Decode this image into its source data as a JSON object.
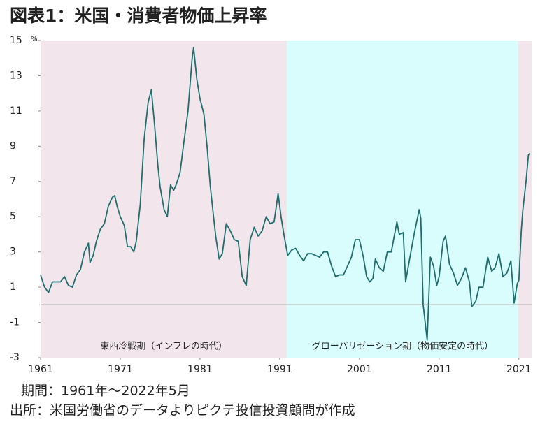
{
  "title": "図表1：米国・消費者物価上昇率",
  "notes": [
    "期間：1961年～2022年5月",
    "出所：米国労働省のデータよりピクテ投信投資顧問が作成"
  ],
  "chart_data": {
    "type": "line",
    "y_unit": "%",
    "color": "#1f6e6e",
    "zero_line": true,
    "negative_tick_color": "#e00000",
    "xlim": [
      1961,
      2022.6
    ],
    "xticks": [
      1961,
      1971,
      1981,
      1991,
      2001,
      2011,
      2021
    ],
    "ylim": [
      -3,
      15
    ],
    "yticks": [
      -3,
      -1,
      1,
      3,
      5,
      7,
      9,
      11,
      13,
      15
    ],
    "regions": [
      {
        "start": 1961,
        "end": 1991.9,
        "color": "#f2e6ec",
        "label": "東西冷戦期（インフレの時代）"
      },
      {
        "start": 1991.9,
        "end": 2020.9,
        "color": "#d9fcfc",
        "label": "グローバリゼーション期（物価安定の時代）"
      },
      {
        "start": 2020.9,
        "end": 2022.6,
        "color": "#f2e6ec"
      }
    ],
    "x": [
      1961.0,
      1961.5,
      1962,
      1962.5,
      1963,
      1963.5,
      1964,
      1964.5,
      1965,
      1965.5,
      1966,
      1966.5,
      1967,
      1967.2,
      1967.6,
      1968,
      1968.5,
      1969,
      1969.5,
      1970,
      1970.3,
      1970.6,
      1971,
      1971.5,
      1971.9,
      1972.3,
      1972.7,
      1973,
      1973.5,
      1974,
      1974.5,
      1974.9,
      1975.3,
      1975.7,
      1976,
      1976.5,
      1976.9,
      1977.3,
      1977.7,
      1978,
      1978.5,
      1979,
      1979.5,
      1980,
      1980.2,
      1980.6,
      1981,
      1981.5,
      1981.9,
      1982.3,
      1982.7,
      1983,
      1983.4,
      1983.8,
      1984.3,
      1984.8,
      1985.3,
      1985.8,
      1986.3,
      1986.8,
      1987.3,
      1987.8,
      1988.3,
      1988.8,
      1989.3,
      1989.8,
      1990.3,
      1990.8,
      1991.2,
      1991.6,
      1992,
      1992.5,
      1993,
      1993.5,
      1994,
      1994.5,
      1995,
      1995.5,
      1996,
      1996.5,
      1997,
      1997.5,
      1998,
      1998.5,
      1999,
      1999.5,
      2000,
      2000.5,
      2001,
      2001.5,
      2001.9,
      2002.3,
      2002.7,
      2003,
      2003.5,
      2004,
      2004.5,
      2005,
      2005.7,
      2006,
      2006.5,
      2006.8,
      2007.3,
      2007.9,
      2008.5,
      2008.7,
      2009,
      2009.5,
      2009.9,
      2010.3,
      2010.7,
      2011,
      2011.5,
      2011.8,
      2012.3,
      2012.8,
      2013.3,
      2013.8,
      2014.3,
      2014.8,
      2015.1,
      2015.6,
      2016,
      2016.5,
      2017.1,
      2017.6,
      2018,
      2018.5,
      2019,
      2019.5,
      2020,
      2020.4,
      2020.8,
      2021,
      2021.3,
      2021.5,
      2021.9,
      2022.2,
      2022.4
    ],
    "values": [
      1.7,
      1.0,
      0.7,
      1.3,
      1.3,
      1.3,
      1.6,
      1.1,
      1.0,
      1.7,
      2.0,
      3.0,
      3.5,
      2.4,
      2.8,
      3.6,
      4.3,
      4.6,
      5.6,
      6.1,
      6.2,
      5.6,
      5.0,
      4.5,
      3.3,
      3.3,
      3.0,
      3.6,
      5.7,
      9.4,
      11.5,
      12.2,
      10.2,
      8.0,
      6.7,
      5.4,
      5.0,
      6.8,
      6.5,
      6.8,
      7.5,
      9.3,
      11.0,
      13.9,
      14.6,
      12.8,
      11.7,
      10.8,
      8.9,
      6.7,
      5.0,
      3.8,
      2.6,
      2.9,
      4.6,
      4.2,
      3.7,
      3.6,
      1.6,
      1.1,
      3.7,
      4.4,
      3.9,
      4.2,
      5.0,
      4.6,
      4.7,
      6.3,
      4.9,
      3.8,
      2.8,
      3.1,
      3.2,
      2.8,
      2.5,
      2.9,
      2.9,
      2.8,
      2.7,
      3.0,
      3.0,
      2.2,
      1.6,
      1.7,
      1.7,
      2.2,
      2.7,
      3.7,
      3.7,
      2.7,
      1.6,
      1.3,
      1.5,
      2.6,
      2.1,
      1.9,
      3.0,
      3.0,
      4.7,
      4.0,
      4.1,
      1.3,
      2.6,
      4.1,
      5.4,
      4.9,
      0.0,
      -2.0,
      2.7,
      2.2,
      1.1,
      1.6,
      3.6,
      3.9,
      2.3,
      1.8,
      1.1,
      1.5,
      2.1,
      1.3,
      -0.1,
      0.2,
      1.0,
      1.0,
      2.7,
      1.9,
      2.1,
      2.9,
      1.6,
      1.8,
      2.5,
      0.1,
      1.2,
      1.4,
      4.2,
      5.4,
      7.0,
      8.5,
      8.6
    ]
  }
}
